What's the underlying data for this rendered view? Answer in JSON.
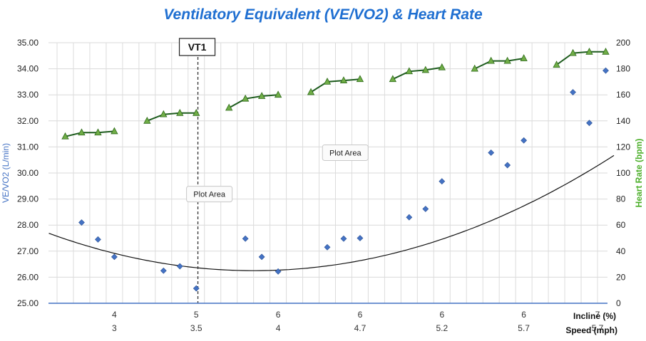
{
  "chart_data": {
    "type": "scatter",
    "title": "Ventilatory Equivalent (VE/VO2) & Heart Rate",
    "ylabel": "VE/VO2 (L/min)",
    "y2label": "Heart Rate (bpm)",
    "xlabel_incline": "Incline (%)",
    "xlabel_speed": "Speed (mph)",
    "ylim": [
      25,
      35
    ],
    "y_ticks": [
      "25.00",
      "26.00",
      "27.00",
      "28.00",
      "29.00",
      "30.00",
      "31.00",
      "32.00",
      "33.00",
      "34.00",
      "35.00"
    ],
    "y2lim": [
      0,
      200
    ],
    "y2_ticks": [
      "0",
      "20",
      "40",
      "60",
      "80",
      "100",
      "120",
      "140",
      "160",
      "180",
      "200"
    ],
    "xlim": [
      0,
      33
    ],
    "incline_labels": [
      {
        "x": 3.5,
        "label": "4"
      },
      {
        "x": 8.5,
        "label": "5"
      },
      {
        "x": 13.5,
        "label": "6"
      },
      {
        "x": 18.5,
        "label": "6"
      },
      {
        "x": 23.5,
        "label": "6"
      },
      {
        "x": 28.5,
        "label": "6"
      },
      {
        "x": 33.0,
        "label": "7"
      }
    ],
    "speed_labels": [
      {
        "x": 3.5,
        "label": "3"
      },
      {
        "x": 8.5,
        "label": "3.5"
      },
      {
        "x": 13.5,
        "label": "4"
      },
      {
        "x": 18.5,
        "label": "4.7"
      },
      {
        "x": 23.5,
        "label": "5.2"
      },
      {
        "x": 28.5,
        "label": "5.7"
      },
      {
        "x": 33.0,
        "label": "5.7"
      }
    ],
    "vt1": {
      "label": "VT1",
      "x": 8.6
    },
    "series": [
      {
        "type": "scatter",
        "axis": "left",
        "color": "#4472c4",
        "x": [
          1.5,
          2.5,
          3.5,
          6.5,
          7.5,
          8.5,
          11.5,
          12.5,
          13.5,
          16.5,
          17.5,
          18.5,
          21.5,
          22.5,
          23.5,
          26.5,
          27.5,
          28.5,
          31.5,
          32.5,
          33.5
        ],
        "values": [
          28.1,
          27.45,
          26.78,
          26.25,
          26.42,
          25.57,
          27.48,
          26.78,
          26.22,
          27.15,
          27.48,
          27.5,
          28.3,
          28.62,
          29.68,
          30.78,
          30.3,
          31.25,
          33.1,
          31.92,
          33.93
        ]
      },
      {
        "type": "line",
        "axis": "right",
        "color": "#1e5c1e",
        "marker_color": "#70ad47",
        "segments": [
          {
            "x": [
              0.5,
              1.5,
              2.5,
              3.5
            ],
            "values": [
              128,
              131,
              131,
              132
            ]
          },
          {
            "x": [
              5.5,
              6.5,
              7.5,
              8.5
            ],
            "values": [
              140,
              145,
              146,
              146
            ]
          },
          {
            "x": [
              10.5,
              11.5,
              12.5,
              13.5
            ],
            "values": [
              150,
              157,
              159,
              160
            ]
          },
          {
            "x": [
              15.5,
              16.5,
              17.5,
              18.5
            ],
            "values": [
              162,
              170,
              171,
              172
            ]
          },
          {
            "x": [
              20.5,
              21.5,
              22.5,
              23.5
            ],
            "values": [
              172,
              178,
              179,
              181
            ]
          },
          {
            "x": [
              25.5,
              26.5,
              27.5,
              28.5
            ],
            "values": [
              180,
              186,
              186,
              188
            ]
          },
          {
            "x": [
              30.5,
              31.5,
              32.5,
              33.5
            ],
            "values": [
              183,
              192,
              193,
              193
            ]
          }
        ]
      },
      {
        "type": "trendline",
        "axis": "left",
        "color": "#111111",
        "poly": [
          27.574,
          -0.22,
          0.00915
        ]
      }
    ],
    "annotations": [
      {
        "text": "Plot Area",
        "x": 9.3,
        "y": 29.19
      },
      {
        "text": "Plot Area",
        "x": 17.6,
        "y": 30.78
      }
    ],
    "colors": {
      "left_axis": "#4472c4",
      "right_axis": "#4caf2a",
      "title": "#1f6fd1"
    }
  }
}
